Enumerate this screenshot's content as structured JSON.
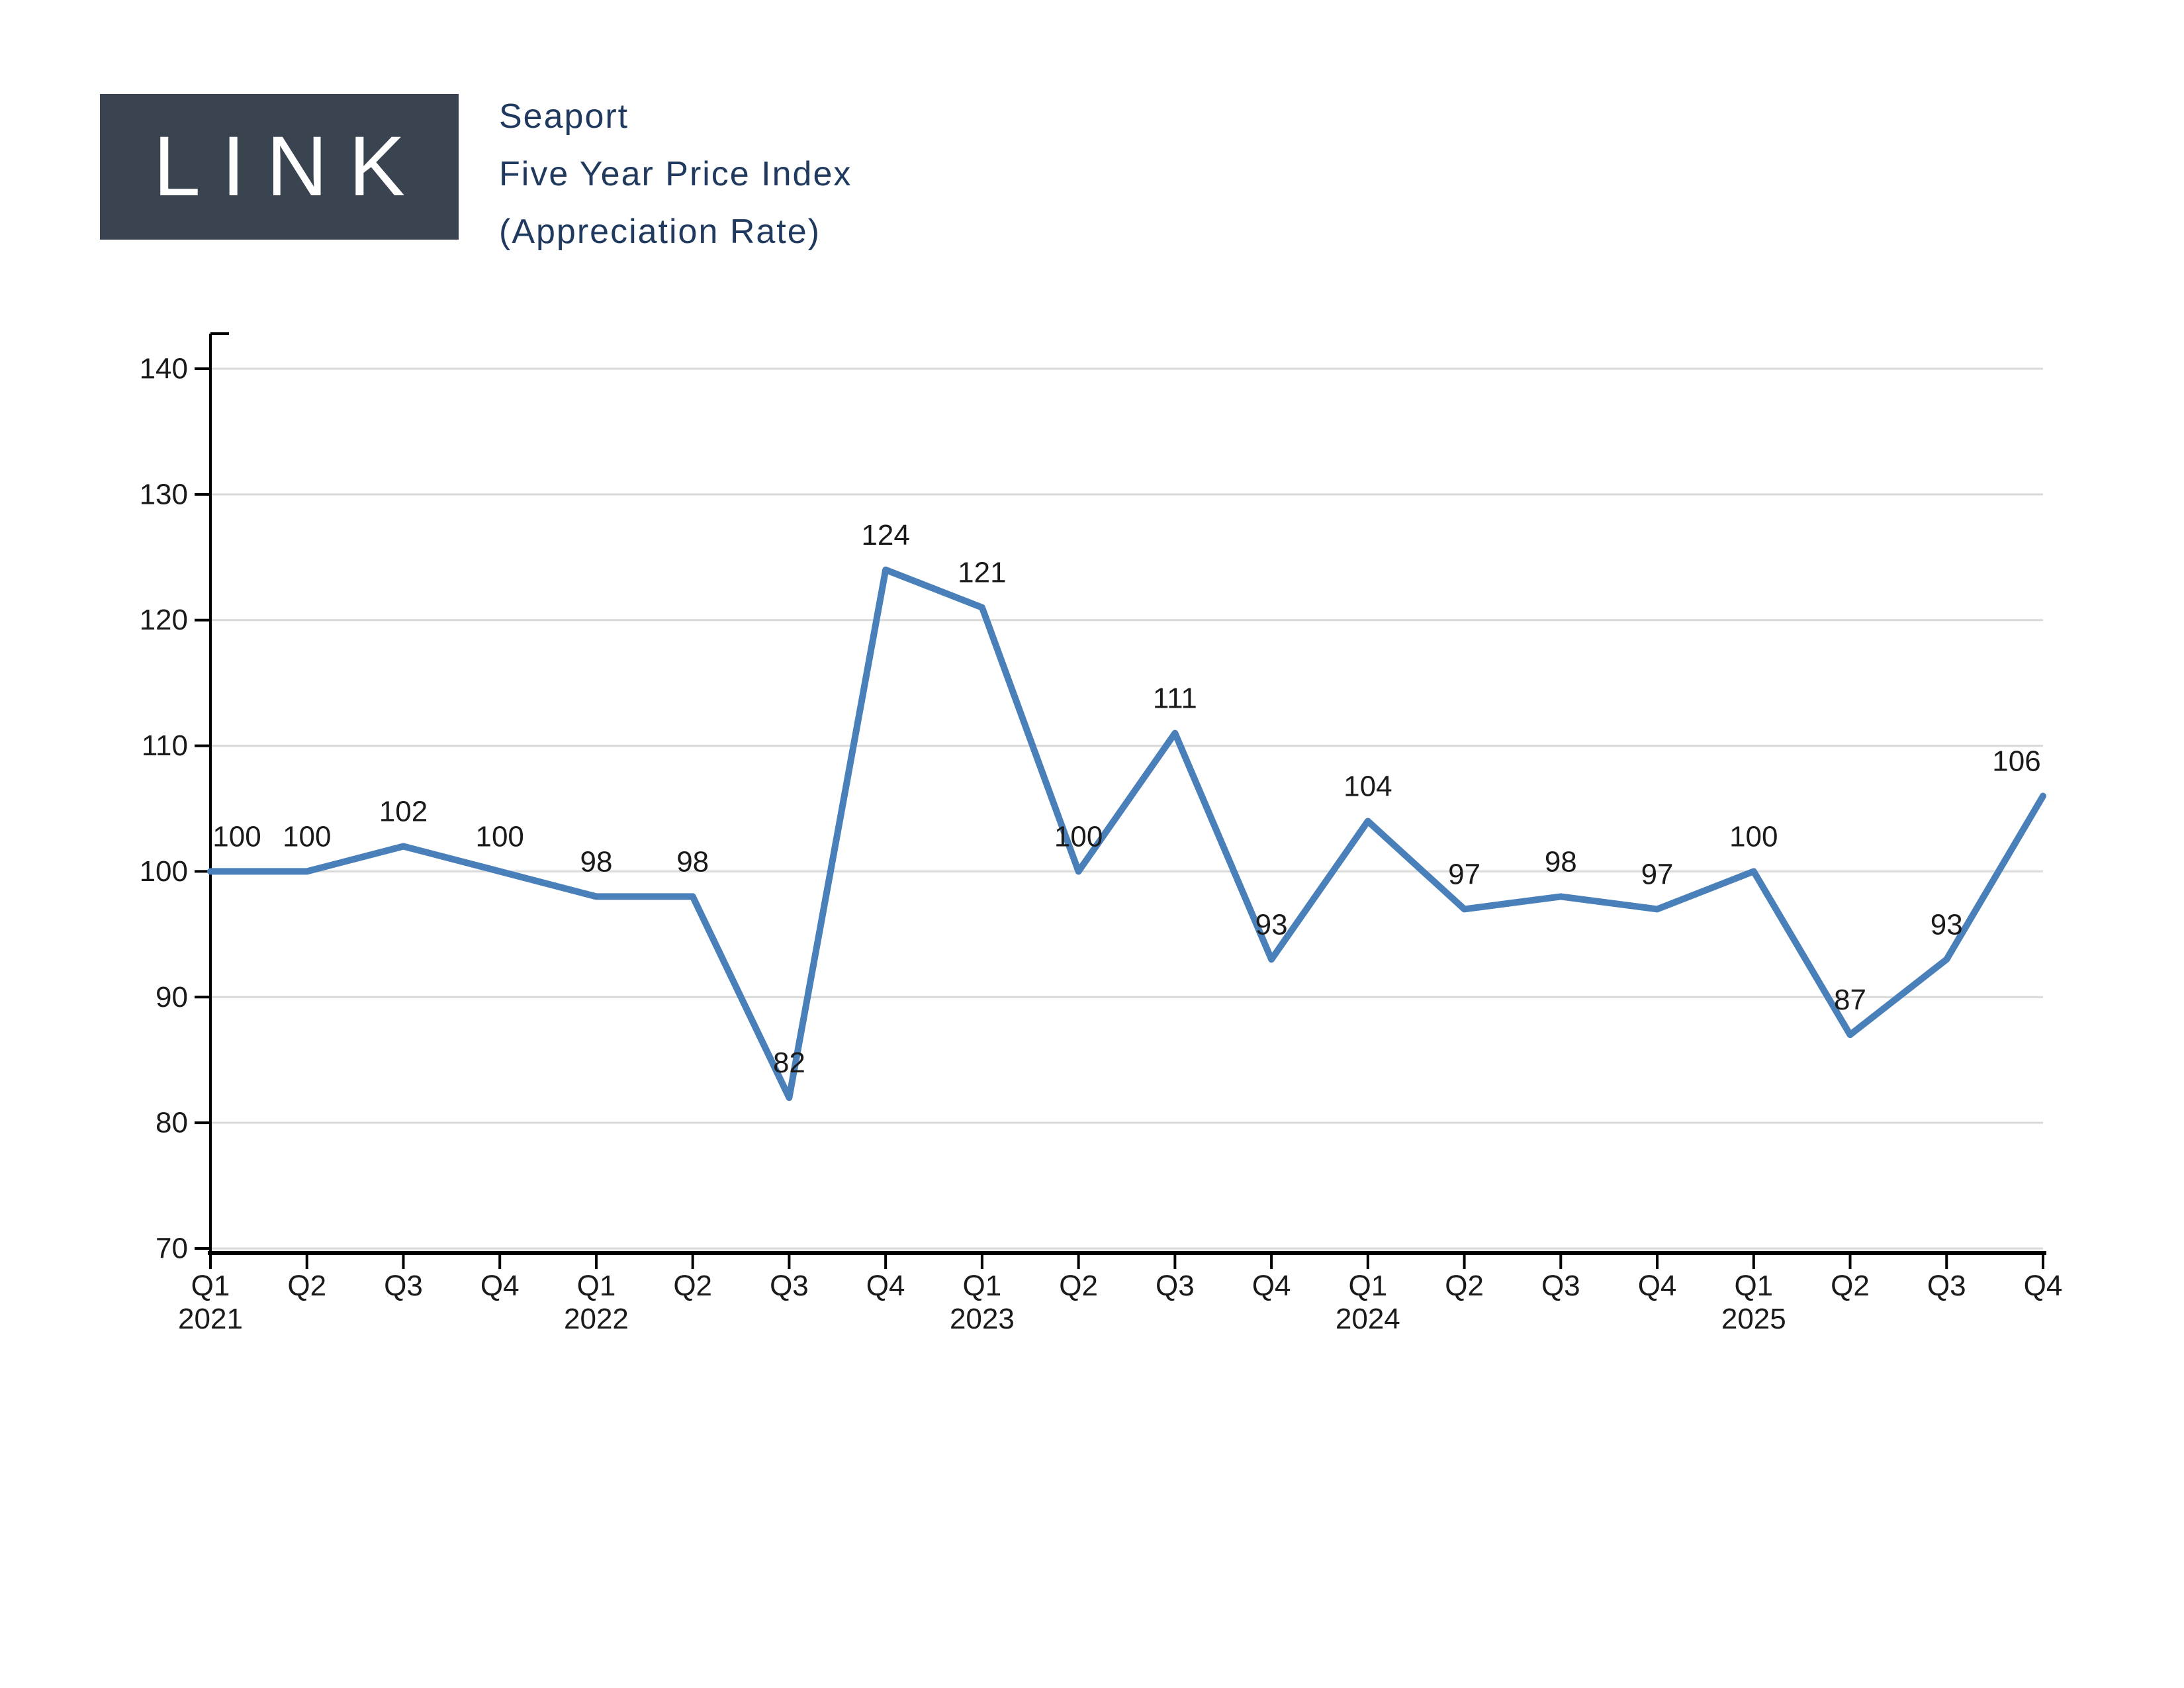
{
  "page": {
    "background": "#ffffff"
  },
  "header": {
    "logo_text": "LINK",
    "logo_bg": "#3a4350",
    "logo_text_color": "#ffffff",
    "title_lines": [
      "Seaport",
      "Five Year Price Index",
      "(Appreciation Rate)"
    ],
    "title_color": "#20395e"
  },
  "chart_data": {
    "type": "line",
    "title": "Seaport Five Year Price Index (Appreciation Rate)",
    "categories": [
      "Q1 2021",
      "Q2 2021",
      "Q3 2021",
      "Q4 2021",
      "Q1 2022",
      "Q2 2022",
      "Q3 2022",
      "Q4 2022",
      "Q1 2023",
      "Q2 2023",
      "Q3 2023",
      "Q4 2023",
      "Q1 2024",
      "Q2 2024",
      "Q3 2024",
      "Q4 2024",
      "Q1 2025",
      "Q2 2025",
      "Q3 2025",
      "Q4 2025"
    ],
    "x_tick_quarters": [
      "Q1",
      "Q2",
      "Q3",
      "Q4",
      "Q1",
      "Q2",
      "Q3",
      "Q4",
      "Q1",
      "Q2",
      "Q3",
      "Q4",
      "Q1",
      "Q2",
      "Q3",
      "Q4",
      "Q1",
      "Q2",
      "Q3",
      "Q4"
    ],
    "x_year_labels": {
      "0": "2021",
      "4": "2022",
      "8": "2023",
      "12": "2024",
      "16": "2025"
    },
    "series": [
      {
        "name": "Five Year Price Index (Appreciation Rate)",
        "values": [
          100,
          100,
          102,
          100,
          98,
          98,
          82,
          124,
          121,
          100,
          111,
          93,
          104,
          97,
          98,
          97,
          100,
          87,
          93,
          106
        ]
      }
    ],
    "data_labels_shown": true,
    "ylim": [
      70,
      140
    ],
    "yticks": [
      70,
      80,
      90,
      100,
      110,
      120,
      130,
      140
    ],
    "grid": true,
    "legend": "none",
    "colors": {
      "line": "#4a80b9",
      "grid": "#d9d9d9",
      "axis": "#000000",
      "tick_labels": "#1a1a1a",
      "data_labels": "#1a1a1a"
    }
  }
}
